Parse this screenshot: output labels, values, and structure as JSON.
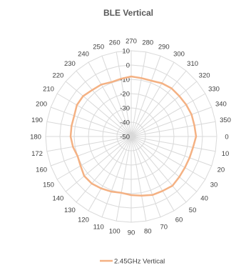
{
  "chart_data": {
    "type": "radar",
    "title": "BLE Vertical",
    "angle_labels": [
      "270",
      "280",
      "290",
      "300",
      "310",
      "320",
      "330",
      "340",
      "350",
      "0",
      "10",
      "20",
      "30",
      "40",
      "50",
      "60",
      "70",
      "80",
      "90",
      "100",
      "110",
      "120",
      "130",
      "140",
      "150",
      "160",
      "172",
      "180",
      "190",
      "200",
      "210",
      "220",
      "230",
      "240",
      "250",
      "260"
    ],
    "radial_ticks": [
      "-50",
      "-40",
      "-30",
      "-20",
      "-10",
      "0",
      "10"
    ],
    "radial_range": [
      -50,
      10
    ],
    "legend_position": "bottom",
    "series": [
      {
        "name": "2.45GHz Vertical",
        "color": "#F4B183",
        "values": [
          -8,
          -8.5,
          -8.5,
          -7,
          -6,
          -6,
          -5.5,
          -5,
          -5,
          -4.5,
          -6,
          -6.5,
          -6.5,
          -6,
          -5,
          -6,
          -6.5,
          -8,
          -9,
          -10,
          -9,
          -8,
          -7,
          -7,
          -9,
          -10,
          -8.5,
          -7.5,
          -7.5,
          -7.5,
          -6,
          -6,
          -7.5,
          -8,
          -9.5,
          -9
        ]
      }
    ]
  }
}
